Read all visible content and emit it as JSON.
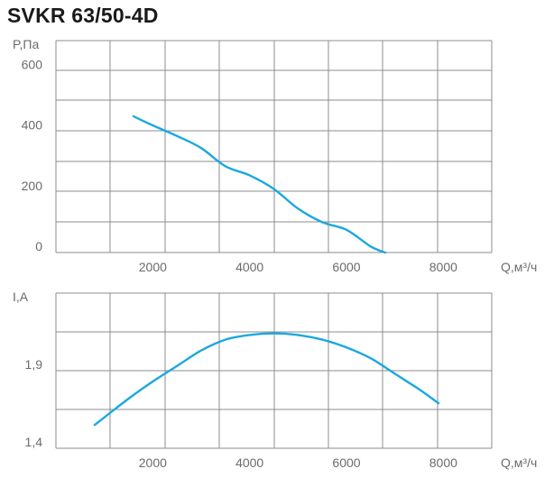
{
  "title": "SVKR 63/50-4D",
  "colors": {
    "curve": "#1ba8e0",
    "grid": "#8c8c8c",
    "text": "#6b6b6b"
  },
  "chart_data": [
    {
      "type": "line",
      "ylabel": "P,Па",
      "xlabel": "Q,м³/ч",
      "xlim": [
        0,
        9000
      ],
      "ylim": [
        0,
        700
      ],
      "x_ticks": [
        2000,
        4000,
        6000,
        8000
      ],
      "y_ticks": [
        0,
        200,
        400,
        600
      ],
      "x_tick_labels": [
        "2000",
        "4000",
        "6000",
        "8000"
      ],
      "y_tick_labels": [
        "0",
        "200",
        "400",
        "600"
      ],
      "grid": true,
      "series": [
        {
          "x": [
            1600,
            2000,
            2500,
            3000,
            3500,
            4000,
            4500,
            5000,
            5500,
            6000,
            6500,
            6800
          ],
          "y": [
            450,
            420,
            385,
            345,
            285,
            255,
            210,
            145,
            100,
            75,
            20,
            0
          ]
        }
      ]
    },
    {
      "type": "line",
      "ylabel": "I,А",
      "xlabel": "Q,м³/ч",
      "xlim": [
        0,
        9000
      ],
      "ylim": [
        1.4,
        2.4
      ],
      "x_ticks": [
        2000,
        4000,
        6000,
        8000
      ],
      "y_ticks": [
        1.4,
        1.9
      ],
      "x_tick_labels": [
        "2000",
        "4000",
        "6000",
        "8000"
      ],
      "y_tick_labels": [
        "1,4",
        "1,9"
      ],
      "grid": true,
      "series": [
        {
          "x": [
            800,
            1500,
            2000,
            2500,
            3000,
            3500,
            4000,
            4500,
            5000,
            5500,
            6000,
            6500,
            7000,
            7500,
            7900
          ],
          "y": [
            1.55,
            1.72,
            1.83,
            1.93,
            2.03,
            2.1,
            2.13,
            2.14,
            2.13,
            2.1,
            2.05,
            1.98,
            1.88,
            1.78,
            1.69
          ]
        }
      ]
    }
  ]
}
